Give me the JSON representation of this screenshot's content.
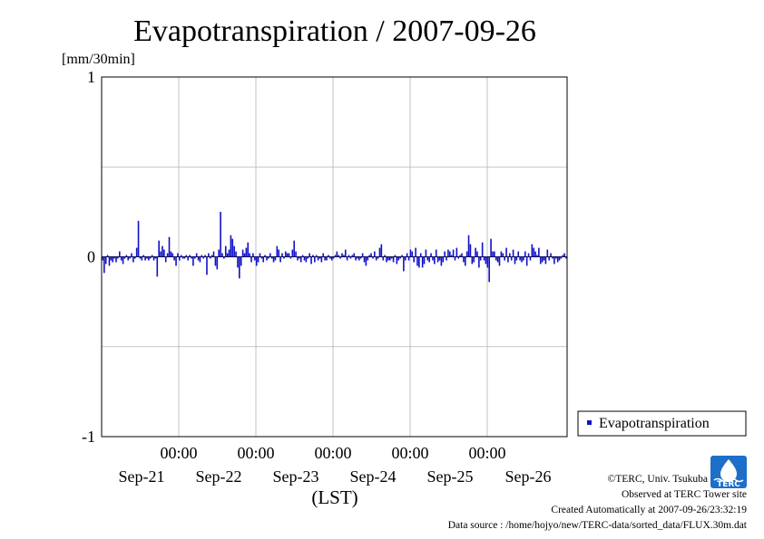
{
  "chart_data": {
    "type": "bar",
    "title": "Evapotranspiration / 2007-09-26",
    "ylabel": "[mm/30min]",
    "xlabel": "(LST)",
    "ylim": [
      -1,
      1
    ],
    "yticks": [
      "1",
      "0",
      "-1"
    ],
    "xtick_times": [
      "00:00",
      "00:00",
      "00:00",
      "00:00",
      "00:00"
    ],
    "xtick_dates": [
      "Sep-21",
      "Sep-22",
      "Sep-23",
      "Sep-24",
      "Sep-25",
      "Sep-26"
    ],
    "grid": true,
    "legend_position": "right",
    "series": [
      {
        "name": "Evapotranspiration",
        "color": "#1010c8",
        "values": [
          -0.02,
          -0.09,
          -0.04,
          0.01,
          -0.05,
          -0.02,
          -0.03,
          -0.01,
          -0.03,
          -0.01,
          0.03,
          -0.02,
          -0.04,
          -0.01,
          0.01,
          -0.02,
          -0.01,
          0.02,
          -0.03,
          -0.01,
          0.05,
          0.2,
          -0.01,
          -0.02,
          0.01,
          -0.02,
          -0.01,
          -0.02,
          -0.01,
          0.01,
          -0.02,
          -0.01,
          -0.11,
          0.09,
          0.03,
          0.06,
          0.04,
          -0.03,
          0.02,
          0.11,
          0.03,
          0.02,
          -0.02,
          -0.05,
          0.02,
          -0.02,
          0.01,
          -0.01,
          -0.01,
          0.01,
          -0.02,
          0.01,
          -0.01,
          -0.05,
          -0.01,
          0.02,
          -0.02,
          -0.03,
          0.01,
          -0.01,
          0.01,
          -0.1,
          0.02,
          -0.01,
          0.01,
          0.03,
          -0.05,
          -0.07,
          0.04,
          0.25,
          0.02,
          -0.01,
          0.06,
          0.02,
          0.04,
          0.12,
          0.1,
          0.06,
          0.03,
          -0.06,
          -0.12,
          -0.05,
          0.04,
          0.02,
          0.05,
          0.08,
          0.02,
          -0.03,
          0.02,
          -0.02,
          -0.05,
          -0.03,
          0.02,
          -0.01,
          -0.03,
          0.01,
          -0.02,
          -0.01,
          0.02,
          -0.01,
          -0.03,
          -0.02,
          0.06,
          0.04,
          -0.03,
          0.02,
          -0.01,
          0.03,
          0.02,
          0.02,
          -0.01,
          0.04,
          0.09,
          0.03,
          -0.02,
          -0.01,
          -0.03,
          0.01,
          -0.02,
          -0.03,
          -0.01,
          0.02,
          -0.04,
          0.01,
          -0.03,
          0.01,
          -0.02,
          -0.01,
          -0.03,
          0.02,
          -0.02,
          -0.02,
          0.01,
          -0.01,
          -0.02,
          -0.01,
          0.01,
          0.03,
          0.01,
          -0.01,
          0.02,
          0.01,
          0.04,
          -0.02,
          0.01,
          -0.01,
          0.01,
          0.02,
          -0.02,
          -0.01,
          -0.02,
          -0.01,
          0.02,
          -0.03,
          -0.05,
          -0.02,
          0.01,
          0.02,
          -0.01,
          0.03,
          -0.02,
          -0.01,
          0.05,
          0.07,
          -0.02,
          0.01,
          -0.03,
          -0.02,
          -0.02,
          -0.01,
          -0.03,
          0.01,
          -0.04,
          -0.02,
          -0.01,
          0.01,
          -0.08,
          -0.02,
          0.02,
          -0.02,
          0.04,
          0.03,
          -0.03,
          0.05,
          -0.05,
          -0.06,
          0.02,
          -0.06,
          -0.04,
          0.04,
          -0.02,
          -0.03,
          0.02,
          -0.02,
          -0.04,
          0.04,
          -0.03,
          -0.02,
          -0.05,
          -0.03,
          0.03,
          -0.02,
          0.04,
          0.03,
          0.01,
          0.04,
          -0.02,
          0.05,
          -0.01,
          0.01,
          0.02,
          -0.03,
          -0.05,
          0.03,
          0.12,
          0.07,
          -0.04,
          -0.03,
          0.05,
          0.03,
          -0.06,
          -0.02,
          0.08,
          -0.02,
          -0.04,
          -0.06,
          -0.14,
          0.1,
          0.03,
          0.03,
          -0.02,
          -0.03,
          -0.05,
          0.03,
          0.02,
          -0.02,
          0.05,
          -0.03,
          0.02,
          -0.02,
          0.04,
          -0.04,
          -0.02,
          0.03,
          -0.02,
          -0.03,
          -0.02,
          0.03,
          -0.05,
          0.02,
          -0.02,
          0.07,
          0.05,
          0.03,
          0.01,
          0.05,
          -0.04,
          -0.03,
          -0.02,
          -0.04,
          0.04,
          -0.02,
          0.02,
          -0.01,
          -0.04,
          -0.01,
          -0.03,
          -0.02,
          -0.01,
          0.01,
          0.02,
          -0.01
        ]
      }
    ]
  },
  "legend": {
    "label": "Evapotranspiration"
  },
  "credits": {
    "copyright": "©TERC, Univ. Tsukuba",
    "observed": "Observed at TERC Tower site",
    "created": "Created Automatically at 2007-09-26/23:32:19",
    "source": "Data source : /home/hojyo/new/TERC-data/sorted_data/FLUX.30m.dat"
  },
  "logo": {
    "text": "TERC",
    "icon": "terc-logo-icon",
    "color": "#1e6fc8"
  }
}
